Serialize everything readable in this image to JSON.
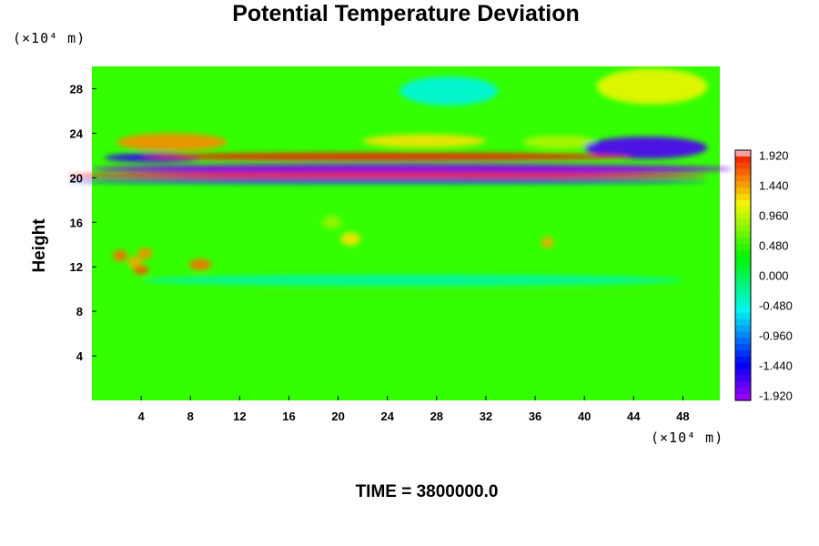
{
  "chart_data": {
    "type": "heatmap",
    "title": "Potential Temperature Deviation",
    "ylabel": "Height",
    "x_unit": "(×10⁴ m)",
    "y_unit": "(×10⁴ m)",
    "footer": "TIME = 3800000.0",
    "xlim": [
      0,
      51
    ],
    "ylim": [
      0,
      30
    ],
    "x_ticks": [
      4,
      8,
      12,
      16,
      20,
      24,
      28,
      32,
      36,
      40,
      44,
      48
    ],
    "x_tick_labels": [
      "4",
      "8",
      "12",
      "16",
      "20",
      "24",
      "28",
      "32",
      "36",
      "40",
      "44",
      "48"
    ],
    "y_ticks": [
      4,
      8,
      12,
      16,
      20,
      24,
      28
    ],
    "y_tick_labels": [
      "4",
      "8",
      "12",
      "16",
      "20",
      "24",
      "28"
    ],
    "colorbar": {
      "min": -2.0,
      "max": 2.0,
      "tick_values": [
        1.92,
        1.44,
        0.96,
        0.48,
        0.0,
        -0.48,
        -0.96,
        -1.44,
        -1.92
      ],
      "tick_labels": [
        "1.920",
        "1.440",
        "0.960",
        "0.480",
        "0.000",
        "-0.480",
        "-0.960",
        "-1.440",
        "-1.920"
      ]
    },
    "features": [
      {
        "kind": "warm",
        "x": 45.5,
        "y": 28.2,
        "sx": 4.5,
        "sy": 1.6,
        "value": 1.1
      },
      {
        "kind": "cool",
        "x": 29,
        "y": 27.8,
        "sx": 4,
        "sy": 1.3,
        "value": -0.5
      },
      {
        "kind": "warm",
        "x": 6.5,
        "y": 23.2,
        "sx": 4.5,
        "sy": 0.8,
        "value": 1.5
      },
      {
        "kind": "warm",
        "x": 27,
        "y": 23.3,
        "sx": 5,
        "sy": 0.6,
        "value": 1.2
      },
      {
        "kind": "warm",
        "x": 38,
        "y": 23.2,
        "sx": 3,
        "sy": 0.6,
        "value": 0.9
      },
      {
        "kind": "cool",
        "x": 45,
        "y": 22.7,
        "sx": 5,
        "sy": 1.0,
        "value": -1.7
      },
      {
        "kind": "cool",
        "x": 5,
        "y": 21.8,
        "sx": 4,
        "sy": 0.4,
        "value": -1.6
      },
      {
        "kind": "cool",
        "x": 26,
        "y": 20.8,
        "sx": 26,
        "sy": 0.45,
        "value": -1.9
      },
      {
        "kind": "warm",
        "x": 24,
        "y": 21.9,
        "sx": 20,
        "sy": 0.35,
        "value": 1.9
      },
      {
        "kind": "warm",
        "x": 24,
        "y": 20.2,
        "sx": 26,
        "sy": 0.3,
        "value": 1.9
      },
      {
        "kind": "cool",
        "x": 24,
        "y": 19.7,
        "sx": 26,
        "sy": 0.25,
        "value": -1.2
      },
      {
        "kind": "warm",
        "x": 2.3,
        "y": 13.0,
        "sx": 0.6,
        "sy": 0.5,
        "value": 1.6
      },
      {
        "kind": "warm",
        "x": 4.3,
        "y": 13.2,
        "sx": 0.6,
        "sy": 0.5,
        "value": 1.5
      },
      {
        "kind": "warm",
        "x": 3.5,
        "y": 12.4,
        "sx": 0.6,
        "sy": 0.5,
        "value": 1.4
      },
      {
        "kind": "warm",
        "x": 4.0,
        "y": 11.7,
        "sx": 0.6,
        "sy": 0.4,
        "value": 1.7
      },
      {
        "kind": "warm",
        "x": 8.8,
        "y": 12.2,
        "sx": 0.9,
        "sy": 0.5,
        "value": 1.6
      },
      {
        "kind": "warm",
        "x": 19.5,
        "y": 16.0,
        "sx": 0.8,
        "sy": 0.6,
        "value": 0.8
      },
      {
        "kind": "warm",
        "x": 21,
        "y": 14.5,
        "sx": 0.8,
        "sy": 0.6,
        "value": 1.2
      },
      {
        "kind": "warm",
        "x": 37,
        "y": 14.2,
        "sx": 0.5,
        "sy": 0.5,
        "value": 1.4
      },
      {
        "kind": "cool",
        "x": 26,
        "y": 10.8,
        "sx": 22,
        "sy": 0.5,
        "value": -0.3
      },
      {
        "kind": "warm",
        "x": 30,
        "y": 9.6,
        "sx": 20,
        "sy": 0.25,
        "value": 0.5
      }
    ]
  }
}
